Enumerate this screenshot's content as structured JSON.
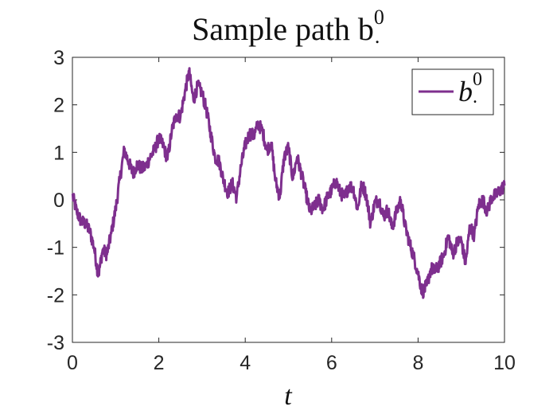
{
  "chart_data": {
    "type": "line",
    "title": "Sample path b",
    "title_superscript": "0",
    "title_subscript": ".",
    "xlabel": "t",
    "ylabel": "",
    "xlim": [
      0,
      10
    ],
    "ylim": [
      -3,
      3
    ],
    "xticks": [
      "0",
      "2",
      "4",
      "6",
      "8",
      "10"
    ],
    "yticks": [
      "3",
      "2",
      "1",
      "0",
      "-1",
      "-2",
      "-3"
    ],
    "grid": false,
    "legend": {
      "position": "top-right",
      "entries": [
        {
          "label": "b",
          "superscript": "0",
          "subscript": "."
        }
      ]
    },
    "colors": {
      "series": "#7e2f8e",
      "axes": "#262626"
    },
    "series": [
      {
        "name": "b",
        "x": [
          0,
          0.1,
          0.2,
          0.3,
          0.4,
          0.5,
          0.6,
          0.7,
          0.8,
          0.9,
          1.0,
          1.1,
          1.2,
          1.3,
          1.4,
          1.5,
          1.6,
          1.7,
          1.8,
          1.9,
          2.0,
          2.1,
          2.2,
          2.3,
          2.4,
          2.5,
          2.6,
          2.7,
          2.8,
          2.9,
          3.0,
          3.1,
          3.2,
          3.3,
          3.4,
          3.5,
          3.6,
          3.7,
          3.8,
          3.9,
          4.0,
          4.1,
          4.2,
          4.3,
          4.4,
          4.5,
          4.6,
          4.7,
          4.8,
          4.9,
          5.0,
          5.1,
          5.2,
          5.3,
          5.4,
          5.5,
          5.6,
          5.7,
          5.8,
          5.9,
          6.0,
          6.1,
          6.2,
          6.3,
          6.4,
          6.5,
          6.6,
          6.7,
          6.8,
          6.9,
          7.0,
          7.1,
          7.2,
          7.3,
          7.4,
          7.5,
          7.6,
          7.7,
          7.8,
          7.9,
          8.0,
          8.1,
          8.2,
          8.3,
          8.4,
          8.5,
          8.6,
          8.7,
          8.8,
          8.9,
          9.0,
          9.1,
          9.2,
          9.3,
          9.4,
          9.5,
          9.6,
          9.7,
          9.8,
          9.9,
          10.0
        ],
        "y": [
          0.1,
          -0.25,
          -0.45,
          -0.5,
          -0.65,
          -1.0,
          -1.6,
          -1.05,
          -1.15,
          -0.7,
          -0.2,
          0.45,
          1.05,
          0.8,
          0.55,
          0.75,
          0.65,
          0.7,
          0.9,
          1.05,
          1.3,
          1.15,
          0.85,
          1.45,
          1.8,
          1.75,
          2.25,
          2.7,
          2.1,
          2.4,
          2.25,
          1.9,
          1.4,
          0.9,
          0.8,
          0.4,
          0.15,
          0.35,
          0.05,
          0.7,
          1.15,
          1.4,
          1.35,
          1.6,
          1.45,
          1.05,
          1.2,
          0.4,
          0.05,
          0.9,
          1.1,
          0.45,
          0.9,
          0.55,
          0.15,
          -0.25,
          -0.15,
          0.0,
          -0.2,
          0.05,
          0.2,
          0.4,
          0.15,
          0.05,
          0.3,
          0.25,
          -0.2,
          0.35,
          0.1,
          -0.5,
          -0.05,
          0.0,
          -0.35,
          -0.2,
          -0.6,
          -0.25,
          0.0,
          -0.55,
          -0.9,
          -1.2,
          -1.55,
          -1.95,
          -1.8,
          -1.45,
          -1.5,
          -1.35,
          -1.15,
          -0.75,
          -1.15,
          -0.9,
          -0.85,
          -1.35,
          -0.55,
          -0.75,
          -0.1,
          0.0,
          -0.25,
          0.05,
          0.1,
          0.2,
          0.3
        ]
      }
    ]
  }
}
